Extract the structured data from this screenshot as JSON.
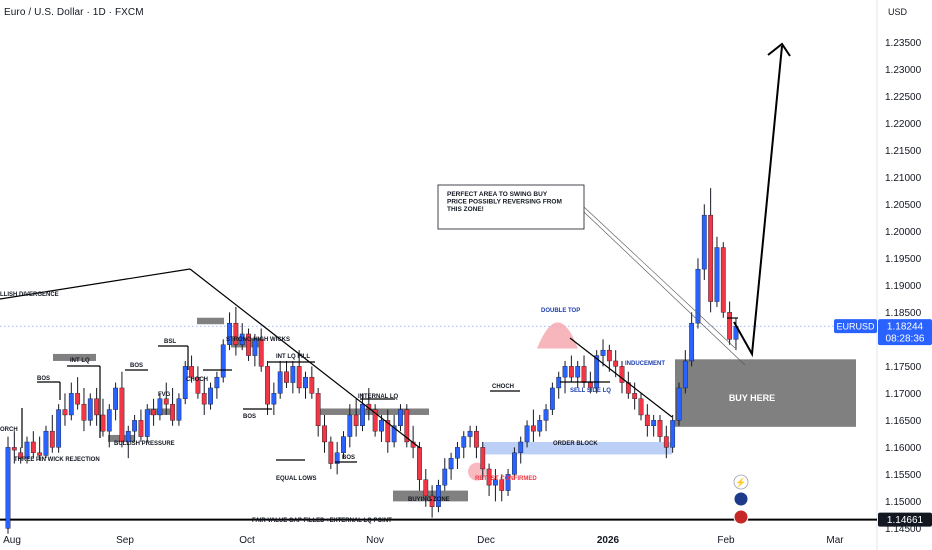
{
  "header": {
    "title": "Euro / U.S. Dollar · 1D · FXCM",
    "currency": "USD"
  },
  "colors": {
    "bull": "#2962ff",
    "bear": "#f23645",
    "zone": "#808080",
    "orderBlock": "#bcd0f7",
    "confirm": "#f5a3ab",
    "axisBadge": "#2962ff",
    "lastLabel": "#131722"
  },
  "chart_data": {
    "type": "candlestick",
    "ylim": [
      1.1447,
      1.2395
    ],
    "y_ticks": [
      "1.23500",
      "1.23000",
      "1.22500",
      "1.22000",
      "1.21500",
      "1.21000",
      "1.20500",
      "1.20000",
      "1.19500",
      "1.19000",
      "1.18500",
      "1.18000",
      "1.17500",
      "1.17000",
      "1.16500",
      "1.16000",
      "1.15500",
      "1.15000",
      "1.14500"
    ],
    "x_ticks": [
      "Aug",
      "Sep",
      "Oct",
      "Nov",
      "Dec",
      "2026",
      "Feb",
      "Mar"
    ],
    "series": [
      {
        "name": "EURUSD",
        "ohlc": [
          [
            1.145,
            1.162,
            1.144,
            1.16
          ],
          [
            1.16,
            1.163,
            1.157,
            1.1595
          ],
          [
            1.159,
            1.16,
            1.157,
            1.158
          ],
          [
            1.158,
            1.162,
            1.157,
            1.161
          ],
          [
            1.161,
            1.163,
            1.158,
            1.159
          ],
          [
            1.159,
            1.162,
            1.1575,
            1.1585
          ],
          [
            1.1585,
            1.164,
            1.158,
            1.163
          ],
          [
            1.163,
            1.166,
            1.159,
            1.16
          ],
          [
            1.16,
            1.168,
            1.159,
            1.167
          ],
          [
            1.167,
            1.17,
            1.164,
            1.166
          ],
          [
            1.166,
            1.172,
            1.165,
            1.17
          ],
          [
            1.17,
            1.173,
            1.167,
            1.168
          ],
          [
            1.168,
            1.171,
            1.163,
            1.165
          ],
          [
            1.165,
            1.17,
            1.164,
            1.169
          ],
          [
            1.169,
            1.171,
            1.164,
            1.166
          ],
          [
            1.166,
            1.169,
            1.162,
            1.163
          ],
          [
            1.163,
            1.168,
            1.16,
            1.167
          ],
          [
            1.167,
            1.172,
            1.165,
            1.171
          ],
          [
            1.171,
            1.174,
            1.16,
            1.161
          ],
          [
            1.161,
            1.164,
            1.158,
            1.163
          ],
          [
            1.163,
            1.166,
            1.161,
            1.165
          ],
          [
            1.165,
            1.167,
            1.161,
            1.162
          ],
          [
            1.162,
            1.168,
            1.161,
            1.167
          ],
          [
            1.167,
            1.169,
            1.164,
            1.166
          ],
          [
            1.166,
            1.17,
            1.165,
            1.169
          ],
          [
            1.169,
            1.172,
            1.166,
            1.168
          ],
          [
            1.168,
            1.171,
            1.164,
            1.165
          ],
          [
            1.165,
            1.17,
            1.164,
            1.169
          ],
          [
            1.169,
            1.176,
            1.168,
            1.175
          ],
          [
            1.175,
            1.177,
            1.172,
            1.173
          ],
          [
            1.173,
            1.175,
            1.169,
            1.17
          ],
          [
            1.17,
            1.173,
            1.166,
            1.168
          ],
          [
            1.168,
            1.172,
            1.167,
            1.171
          ],
          [
            1.171,
            1.174,
            1.169,
            1.173
          ],
          [
            1.173,
            1.18,
            1.172,
            1.179
          ],
          [
            1.179,
            1.185,
            1.178,
            1.183
          ],
          [
            1.183,
            1.186,
            1.177,
            1.179
          ],
          [
            1.179,
            1.183,
            1.178,
            1.181
          ],
          [
            1.181,
            1.182,
            1.176,
            1.177
          ],
          [
            1.177,
            1.181,
            1.175,
            1.18
          ],
          [
            1.18,
            1.182,
            1.174,
            1.175
          ],
          [
            1.175,
            1.176,
            1.166,
            1.168
          ],
          [
            1.168,
            1.172,
            1.166,
            1.17
          ],
          [
            1.17,
            1.176,
            1.169,
            1.174
          ],
          [
            1.174,
            1.176,
            1.171,
            1.172
          ],
          [
            1.172,
            1.176,
            1.17,
            1.175
          ],
          [
            1.175,
            1.178,
            1.17,
            1.171
          ],
          [
            1.171,
            1.174,
            1.169,
            1.173
          ],
          [
            1.173,
            1.175,
            1.169,
            1.17
          ],
          [
            1.17,
            1.171,
            1.162,
            1.164
          ],
          [
            1.164,
            1.166,
            1.159,
            1.161
          ],
          [
            1.161,
            1.162,
            1.156,
            1.157
          ],
          [
            1.157,
            1.161,
            1.155,
            1.159
          ],
          [
            1.159,
            1.163,
            1.158,
            1.162
          ],
          [
            1.162,
            1.168,
            1.16,
            1.166
          ],
          [
            1.166,
            1.169,
            1.162,
            1.164
          ],
          [
            1.164,
            1.17,
            1.163,
            1.168
          ],
          [
            1.168,
            1.171,
            1.165,
            1.167
          ],
          [
            1.167,
            1.168,
            1.162,
            1.163
          ],
          [
            1.163,
            1.166,
            1.161,
            1.165
          ],
          [
            1.165,
            1.167,
            1.159,
            1.161
          ],
          [
            1.161,
            1.166,
            1.16,
            1.164
          ],
          [
            1.164,
            1.168,
            1.163,
            1.167
          ],
          [
            1.167,
            1.168,
            1.16,
            1.161
          ],
          [
            1.161,
            1.164,
            1.158,
            1.16
          ],
          [
            1.16,
            1.161,
            1.152,
            1.154
          ],
          [
            1.154,
            1.156,
            1.149,
            1.151
          ],
          [
            1.151,
            1.153,
            1.147,
            1.149
          ],
          [
            1.149,
            1.154,
            1.148,
            1.153
          ],
          [
            1.153,
            1.158,
            1.152,
            1.156
          ],
          [
            1.156,
            1.159,
            1.154,
            1.158
          ],
          [
            1.158,
            1.161,
            1.156,
            1.16
          ],
          [
            1.16,
            1.163,
            1.158,
            1.162
          ],
          [
            1.162,
            1.164,
            1.16,
            1.163
          ],
          [
            1.163,
            1.164,
            1.158,
            1.16
          ],
          [
            1.16,
            1.161,
            1.154,
            1.156
          ],
          [
            1.156,
            1.157,
            1.151,
            1.153
          ],
          [
            1.153,
            1.156,
            1.15,
            1.154
          ],
          [
            1.154,
            1.155,
            1.15,
            1.152
          ],
          [
            1.152,
            1.156,
            1.151,
            1.155
          ],
          [
            1.155,
            1.16,
            1.154,
            1.159
          ],
          [
            1.159,
            1.162,
            1.157,
            1.161
          ],
          [
            1.161,
            1.165,
            1.16,
            1.164
          ],
          [
            1.164,
            1.167,
            1.161,
            1.163
          ],
          [
            1.163,
            1.166,
            1.162,
            1.165
          ],
          [
            1.165,
            1.168,
            1.163,
            1.167
          ],
          [
            1.167,
            1.172,
            1.166,
            1.171
          ],
          [
            1.171,
            1.174,
            1.169,
            1.173
          ],
          [
            1.173,
            1.176,
            1.17,
            1.175
          ],
          [
            1.175,
            1.177,
            1.172,
            1.173
          ],
          [
            1.173,
            1.176,
            1.171,
            1.175
          ],
          [
            1.175,
            1.177,
            1.171,
            1.172
          ],
          [
            1.172,
            1.174,
            1.17,
            1.171
          ],
          [
            1.171,
            1.178,
            1.17,
            1.177
          ],
          [
            1.177,
            1.18,
            1.175,
            1.178
          ],
          [
            1.178,
            1.179,
            1.174,
            1.176
          ],
          [
            1.176,
            1.178,
            1.173,
            1.175
          ],
          [
            1.175,
            1.176,
            1.17,
            1.172
          ],
          [
            1.172,
            1.174,
            1.169,
            1.17
          ],
          [
            1.17,
            1.172,
            1.167,
            1.169
          ],
          [
            1.169,
            1.17,
            1.165,
            1.166
          ],
          [
            1.166,
            1.168,
            1.162,
            1.164
          ],
          [
            1.164,
            1.166,
            1.162,
            1.165
          ],
          [
            1.165,
            1.166,
            1.161,
            1.162
          ],
          [
            1.162,
            1.164,
            1.158,
            1.16
          ],
          [
            1.16,
            1.166,
            1.159,
            1.165
          ],
          [
            1.165,
            1.172,
            1.164,
            1.171
          ],
          [
            1.171,
            1.178,
            1.17,
            1.176
          ],
          [
            1.176,
            1.185,
            1.175,
            1.183
          ],
          [
            1.183,
            1.195,
            1.182,
            1.193
          ],
          [
            1.193,
            1.205,
            1.191,
            1.203
          ],
          [
            1.203,
            1.208,
            1.185,
            1.187
          ],
          [
            1.187,
            1.199,
            1.186,
            1.197
          ],
          [
            1.197,
            1.198,
            1.184,
            1.185
          ],
          [
            1.185,
            1.187,
            1.179,
            1.18
          ],
          [
            1.18,
            1.184,
            1.178,
            1.1824
          ]
        ]
      }
    ],
    "last_price": "1.18244",
    "symbol_label": "EURUSD",
    "countdown": "08:28:36",
    "reference_level": "1.14661",
    "annotations": {
      "bullish_divergence": "LLISH DIVERGENCE",
      "int_lq": "INT LQ",
      "bos": "BOS",
      "fvg": "FVG",
      "bsl": "BSL",
      "choch": "CHOCH",
      "choch_left": "ORCH",
      "strong_high_wicks": "STRONG HIGH WICKS",
      "int_lq_fill": "INT LQ FILL",
      "internal_lq": "INTERNAL LQ",
      "bullish_pressure": "BULLISH PRESSURE",
      "three_pin": "THREE PIN WICK REJECTION",
      "equal_lows": "EQUAL LOWS",
      "buying_zone": "BUYING ZONE",
      "retest_confirmed": "RETEST CONFIRMED",
      "double_top": "DOUBLE TOP",
      "sell_side_lq": "SELL SIDE LQ",
      "inducement": "INDUCEMENT",
      "order_block": "ORDER BLOCK",
      "buy_here": "BUY HERE",
      "fvg_filled": "FAIR VALUE GAP FILLED +EXTERNAL LQ POINT",
      "callout": [
        "PERFECT AREA TO SWING BUY",
        "PRICE POSSIBLY REVERSING FROM",
        "THIS ZONE!"
      ]
    }
  }
}
